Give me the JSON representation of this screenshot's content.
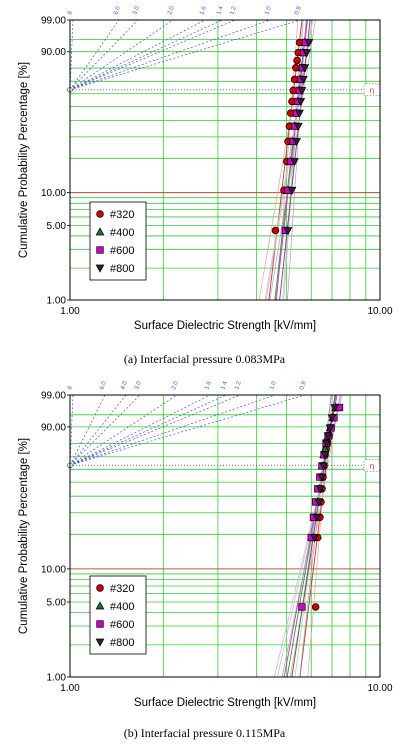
{
  "chart_data": [
    {
      "type": "scatter",
      "caption": "(a) Interfacial pressure 0.083MPa",
      "xlabel": "Surface Dielectric Strength [kV/mm]",
      "ylabel": "Cumulative Probability Percentage [%]",
      "x_scale": "log",
      "y_scale": "weibull",
      "xlim": [
        1.0,
        10.0
      ],
      "ylim": [
        1.0,
        99.0
      ],
      "x_tick_labels": [
        "1.00",
        "10.00"
      ],
      "y_tick_labels": [
        "99.00",
        "90.00",
        "10.00",
        "5.00",
        "1.00"
      ],
      "shape_scale_labels": [
        "8",
        "6.0",
        "3.0",
        "2.0",
        "1.6",
        "1.4",
        "1.2",
        "1.0",
        "0.9"
      ],
      "eta_marker": "η",
      "legend_position": "bottom-left",
      "series": [
        {
          "name": "#320",
          "marker": "circle",
          "color": "#cc0000",
          "x": [
            4.6,
            4.9,
            5.0,
            5.05,
            5.1,
            5.15,
            5.2,
            5.25,
            5.3,
            5.35,
            5.4,
            5.45,
            5.5
          ],
          "y": [
            4.5,
            10.5,
            18.8,
            27.6,
            36.3,
            45.1,
            53.9,
            62.7,
            71.5,
            80.2,
            85.0,
            89.5,
            94.0
          ]
        },
        {
          "name": "#400",
          "marker": "triangle",
          "color": "#2a6a2a",
          "x": [
            5.05,
            5.15,
            5.22,
            5.3,
            5.36,
            5.42,
            5.48,
            5.52,
            5.58,
            5.64,
            5.72
          ],
          "y": [
            10.5,
            18.8,
            27.6,
            36.3,
            45.1,
            53.9,
            62.7,
            71.5,
            80.2,
            89.5,
            94.0
          ]
        },
        {
          "name": "#600",
          "marker": "square",
          "color": "#cc00cc",
          "x": [
            4.95,
            5.05,
            5.15,
            5.25,
            5.32,
            5.38,
            5.44,
            5.5,
            5.56,
            5.62,
            5.68,
            5.75
          ],
          "y": [
            4.5,
            10.5,
            18.8,
            27.6,
            36.3,
            45.1,
            53.9,
            62.7,
            71.5,
            80.2,
            89.5,
            94.0
          ]
        },
        {
          "name": "#800",
          "marker": "triangle-down",
          "color": "#3a1a3a",
          "x": [
            5.05,
            5.2,
            5.3,
            5.38,
            5.45,
            5.5,
            5.55,
            5.6,
            5.66,
            5.72,
            5.8,
            5.9
          ],
          "y": [
            4.5,
            10.5,
            18.8,
            27.6,
            36.3,
            45.1,
            53.9,
            62.7,
            71.5,
            80.2,
            89.5,
            94.0
          ]
        }
      ]
    },
    {
      "type": "scatter",
      "caption": "(b) Interfacial pressure 0.115MPa",
      "xlabel": "Surface Dielectric Strength [kV/mm]",
      "ylabel": "Cumulative Probability Percentage [%]",
      "x_scale": "log",
      "y_scale": "weibull",
      "xlim": [
        1.0,
        10.0
      ],
      "ylim": [
        1.0,
        99.0
      ],
      "x_tick_labels": [
        "1.00",
        "10.00"
      ],
      "y_tick_labels": [
        "99.00",
        "90.00",
        "10.00",
        "5.00",
        "1.00"
      ],
      "shape_scale_labels": [
        "8",
        "6.0",
        "4.0",
        "3.0",
        "2.0",
        "1.6",
        "1.4",
        "1.2",
        "1.0",
        "0.9"
      ],
      "eta_marker": "η",
      "legend_position": "bottom-left",
      "series": [
        {
          "name": "#320",
          "marker": "circle",
          "color": "#cc0000",
          "x": [
            6.2,
            6.3,
            6.4,
            6.45,
            6.5,
            6.55,
            6.6,
            6.65,
            6.7,
            6.78,
            6.85,
            6.95,
            7.1,
            7.3
          ],
          "y": [
            4.5,
            18.8,
            27.6,
            36.3,
            45.1,
            53.9,
            62.7,
            71.5,
            76.0,
            80.2,
            85.0,
            89.5,
            94.0,
            97.0
          ]
        },
        {
          "name": "#400",
          "marker": "triangle",
          "color": "#2a6a2a",
          "x": [
            6.1,
            6.2,
            6.3,
            6.38,
            6.45,
            6.5,
            6.58,
            6.65,
            6.72,
            6.8,
            6.9,
            7.05,
            7.2
          ],
          "y": [
            18.8,
            27.6,
            36.3,
            45.1,
            53.9,
            62.7,
            71.5,
            76.0,
            80.2,
            85.0,
            89.5,
            94.0,
            97.0
          ]
        },
        {
          "name": "#600",
          "marker": "square",
          "color": "#cc00cc",
          "x": [
            5.6,
            6.0,
            6.1,
            6.2,
            6.3,
            6.4,
            6.5,
            6.6,
            6.7,
            6.8,
            6.95,
            7.1,
            7.4
          ],
          "y": [
            4.5,
            18.8,
            27.6,
            36.3,
            45.1,
            53.9,
            62.7,
            71.5,
            80.2,
            85.0,
            89.5,
            94.0,
            97.0
          ]
        },
        {
          "name": "#800",
          "marker": "triangle-down",
          "color": "#3a1a3a",
          "x": [
            6.15,
            6.25,
            6.35,
            6.42,
            6.5,
            6.58,
            6.65,
            6.72,
            6.8,
            6.9,
            7.0,
            7.15
          ],
          "y": [
            18.8,
            27.6,
            36.3,
            45.1,
            53.9,
            62.7,
            71.5,
            80.2,
            85.0,
            89.5,
            94.0,
            97.0
          ]
        }
      ]
    }
  ]
}
